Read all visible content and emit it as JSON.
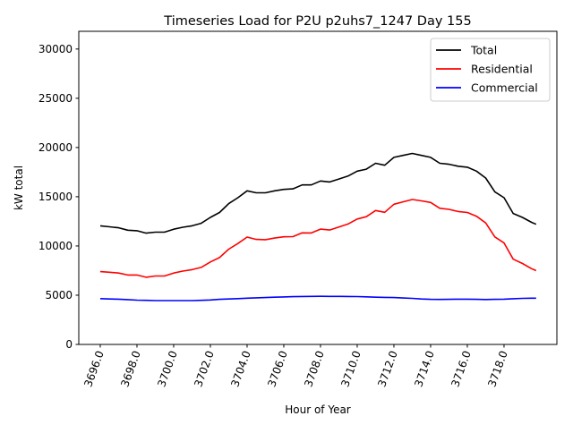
{
  "chart_data": {
    "type": "line",
    "title": "Timeseries Load for P2U p2uhs7_1247  Day 155",
    "xlabel": "Hour of Year",
    "ylabel": "kW total",
    "xlim": [
      3694.83,
      3720.88
    ],
    "ylim": [
      0,
      31800
    ],
    "xticks": [
      3696,
      3698,
      3700,
      3702,
      3704,
      3706,
      3708,
      3710,
      3712,
      3714,
      3716,
      3718
    ],
    "xtick_labels": [
      "3696.0",
      "3698.0",
      "3700.0",
      "3702.0",
      "3704.0",
      "3706.0",
      "3708.0",
      "3710.0",
      "3712.0",
      "3714.0",
      "3716.0",
      "3718.0"
    ],
    "yticks": [
      0,
      5000,
      10000,
      15000,
      20000,
      25000,
      30000
    ],
    "ytick_labels": [
      "0",
      "5000",
      "10000",
      "15000",
      "20000",
      "25000",
      "30000"
    ],
    "grid": false,
    "legend_position": "top-right",
    "x": [
      3696,
      3696.5,
      3697,
      3697.5,
      3698,
      3698.5,
      3699,
      3699.5,
      3700,
      3700.5,
      3701,
      3701.5,
      3702,
      3702.5,
      3703,
      3703.5,
      3704,
      3704.5,
      3705,
      3705.5,
      3706,
      3706.5,
      3707,
      3707.5,
      3708,
      3708.5,
      3709,
      3709.5,
      3710,
      3710.5,
      3711,
      3711.5,
      3712,
      3712.5,
      3713,
      3713.5,
      3714,
      3714.5,
      3715,
      3715.5,
      3716,
      3716.5,
      3717,
      3717.5,
      3718,
      3718.5,
      3719,
      3719.5,
      3719.75
    ],
    "series": [
      {
        "name": "Total",
        "color": "#000000",
        "values": [
          12050,
          11950,
          11850,
          11600,
          11550,
          11300,
          11400,
          11400,
          11700,
          11900,
          12050,
          12300,
          12900,
          13400,
          14300,
          14900,
          15600,
          15400,
          15400,
          15600,
          15750,
          15800,
          16200,
          16200,
          16600,
          16500,
          16800,
          17100,
          17600,
          17800,
          18400,
          18200,
          19000,
          19200,
          19400,
          19200,
          19000,
          18400,
          18300,
          18100,
          18000,
          17600,
          16900,
          15500,
          14900,
          13300,
          12900,
          12400,
          12200
        ]
      },
      {
        "name": "Residential",
        "color": "#ff0000",
        "values": [
          7400,
          7330,
          7250,
          7050,
          7050,
          6820,
          6950,
          6950,
          7250,
          7450,
          7600,
          7820,
          8380,
          8820,
          9680,
          10250,
          10900,
          10670,
          10640,
          10800,
          10930,
          10950,
          11330,
          11320,
          11710,
          11620,
          11920,
          12230,
          12740,
          12970,
          13600,
          13420,
          14240,
          14480,
          14720,
          14580,
          14420,
          13830,
          13720,
          13500,
          13400,
          13020,
          12340,
          10920,
          10300,
          8660,
          8220,
          7700,
          7500
        ]
      },
      {
        "name": "Commercial",
        "color": "#0000ff",
        "values": [
          4650,
          4620,
          4600,
          4550,
          4500,
          4480,
          4450,
          4450,
          4450,
          4450,
          4450,
          4480,
          4520,
          4580,
          4620,
          4650,
          4700,
          4730,
          4760,
          4800,
          4820,
          4850,
          4870,
          4880,
          4890,
          4880,
          4880,
          4870,
          4860,
          4830,
          4800,
          4780,
          4760,
          4720,
          4680,
          4620,
          4580,
          4570,
          4580,
          4600,
          4600,
          4580,
          4560,
          4580,
          4600,
          4640,
          4680,
          4700,
          4700
        ]
      }
    ]
  }
}
